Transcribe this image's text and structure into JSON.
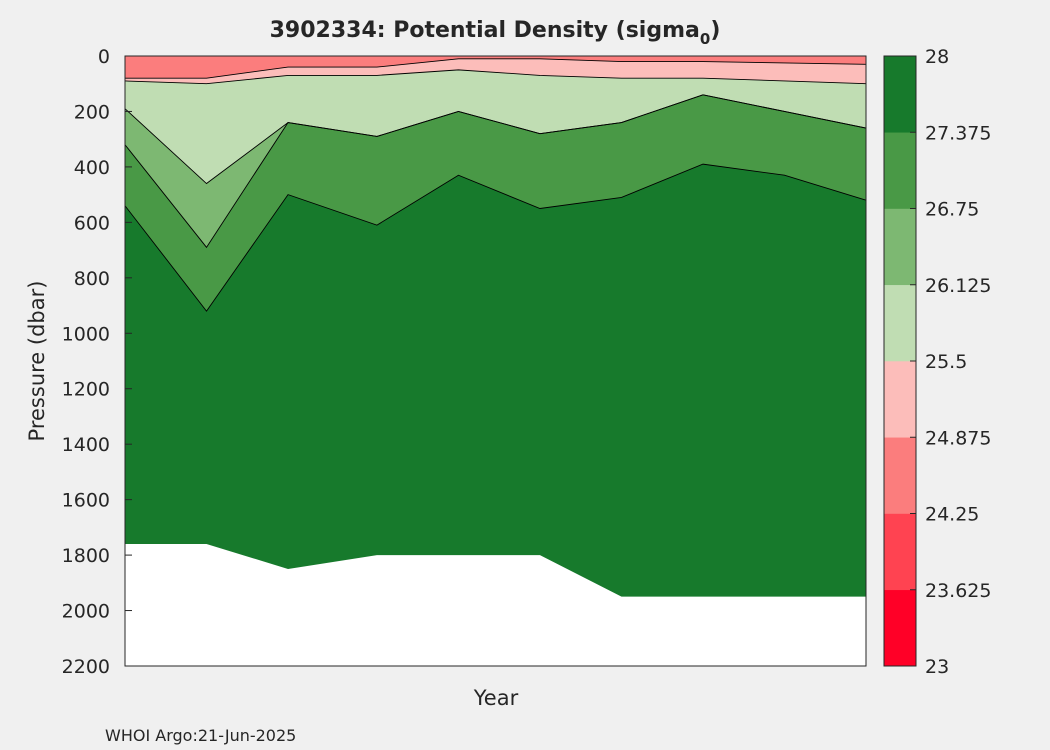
{
  "figure": {
    "title_main": "3902334: Potential Density (sigma",
    "title_sub": "0",
    "title_close": ")",
    "footer": "WHOI Argo:21-Jun-2025",
    "background": "#f0f0f0"
  },
  "chart_data": {
    "type": "contourf",
    "title": "3902334: Potential Density (sigma0)",
    "xlabel": "Year",
    "ylabel": "Pressure (dbar)",
    "ylim": [
      0,
      2200
    ],
    "y_reversed": true,
    "yticks": [
      0,
      200,
      400,
      600,
      800,
      1000,
      1200,
      1400,
      1600,
      1800,
      2000,
      2200
    ],
    "ytick_labels": [
      "0",
      "200",
      "400",
      "600",
      "800",
      "1000",
      "1200",
      "1400",
      "1600",
      "1800",
      "2000",
      "2200"
    ],
    "xticks": [],
    "grid": false,
    "colorbar": {
      "clim": [
        23,
        28
      ],
      "ticks": [
        23,
        23.625,
        24.25,
        24.875,
        25.5,
        26.125,
        26.75,
        27.375,
        28
      ],
      "tick_labels": [
        "23",
        "23.625",
        "24.25",
        "24.875",
        "25.5",
        "26.125",
        "26.75",
        "27.375",
        "28"
      ],
      "colors": [
        "#ff0027",
        "#ff4351",
        "#fb7d7d",
        "#fcbdba",
        "#c0ddb3",
        "#7db872",
        "#499946",
        "#177a2c"
      ],
      "position": "right"
    },
    "profile_x": [
      0,
      0.11,
      0.22,
      0.34,
      0.45,
      0.56,
      0.67,
      0.78,
      0.89,
      1.0
    ],
    "contours": [
      {
        "level": 24.875,
        "depth": [
          80,
          80,
          40,
          40,
          10,
          10,
          20,
          20,
          25,
          30
        ]
      },
      {
        "level": 25.5,
        "depth": [
          90,
          100,
          70,
          70,
          50,
          70,
          80,
          80,
          90,
          100
        ]
      },
      {
        "level": 26.125,
        "depth": [
          190,
          460,
          240,
          290,
          200,
          280,
          240,
          140,
          200,
          260
        ]
      },
      {
        "level": 26.75,
        "depth": [
          320,
          690,
          240,
          290,
          200,
          280,
          240,
          140,
          200,
          260
        ]
      },
      {
        "level": 27.375,
        "depth": [
          540,
          920,
          500,
          610,
          430,
          550,
          510,
          390,
          430,
          520
        ]
      }
    ],
    "max_pressure": [
      1760,
      1760,
      1850,
      1800,
      1800,
      1800,
      1950,
      1950,
      1950,
      1950
    ]
  }
}
